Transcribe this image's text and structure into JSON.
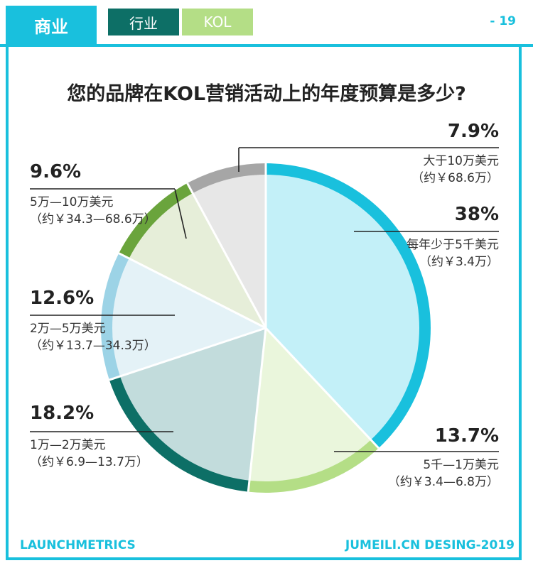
{
  "header": {
    "section_label": "商业",
    "tab_industry": "行业",
    "tab_kol": "KOL",
    "page_number": "- 19"
  },
  "footer": {
    "left": "LAUNCHMETRICS",
    "right": "JUMEILI.CN DESING-2019"
  },
  "chart_data": {
    "type": "pie",
    "title": "您的品牌在KOL营销活动上的年度预算是多少?",
    "slices": [
      {
        "label": "每年少于5千美元",
        "sublabel": "（约￥3.4万）",
        "value": 38,
        "value_label": "38%",
        "fill": "#c3f0f8",
        "ring": "#19c0dd"
      },
      {
        "label": "5千—1万美元",
        "sublabel": "（约￥3.4—6.8万）",
        "value": 13.7,
        "value_label": "13.7%",
        "fill": "#eaf6dc",
        "ring": "#b4de86"
      },
      {
        "label": "1万—2万美元",
        "sublabel": "（约￥6.9—13.7万）",
        "value": 18.2,
        "value_label": "18.2%",
        "fill": "#c2dcdc",
        "ring": "#0d6f66"
      },
      {
        "label": "2万—5万美元",
        "sublabel": "（约￥13.7—34.3万）",
        "value": 12.6,
        "value_label": "12.6%",
        "fill": "#e4f2f7",
        "ring": "#9cd3e6"
      },
      {
        "label": "5万—10万美元",
        "sublabel": "（约￥34.3—68.6万）",
        "value": 9.6,
        "value_label": "9.6%",
        "fill": "#e6eed9",
        "ring": "#6aa43c"
      },
      {
        "label": "大于10万美元",
        "sublabel": "（约￥68.6万）",
        "value": 7.9,
        "value_label": "7.9%",
        "fill": "#e7e7e7",
        "ring": "#a6a6a6"
      }
    ]
  }
}
